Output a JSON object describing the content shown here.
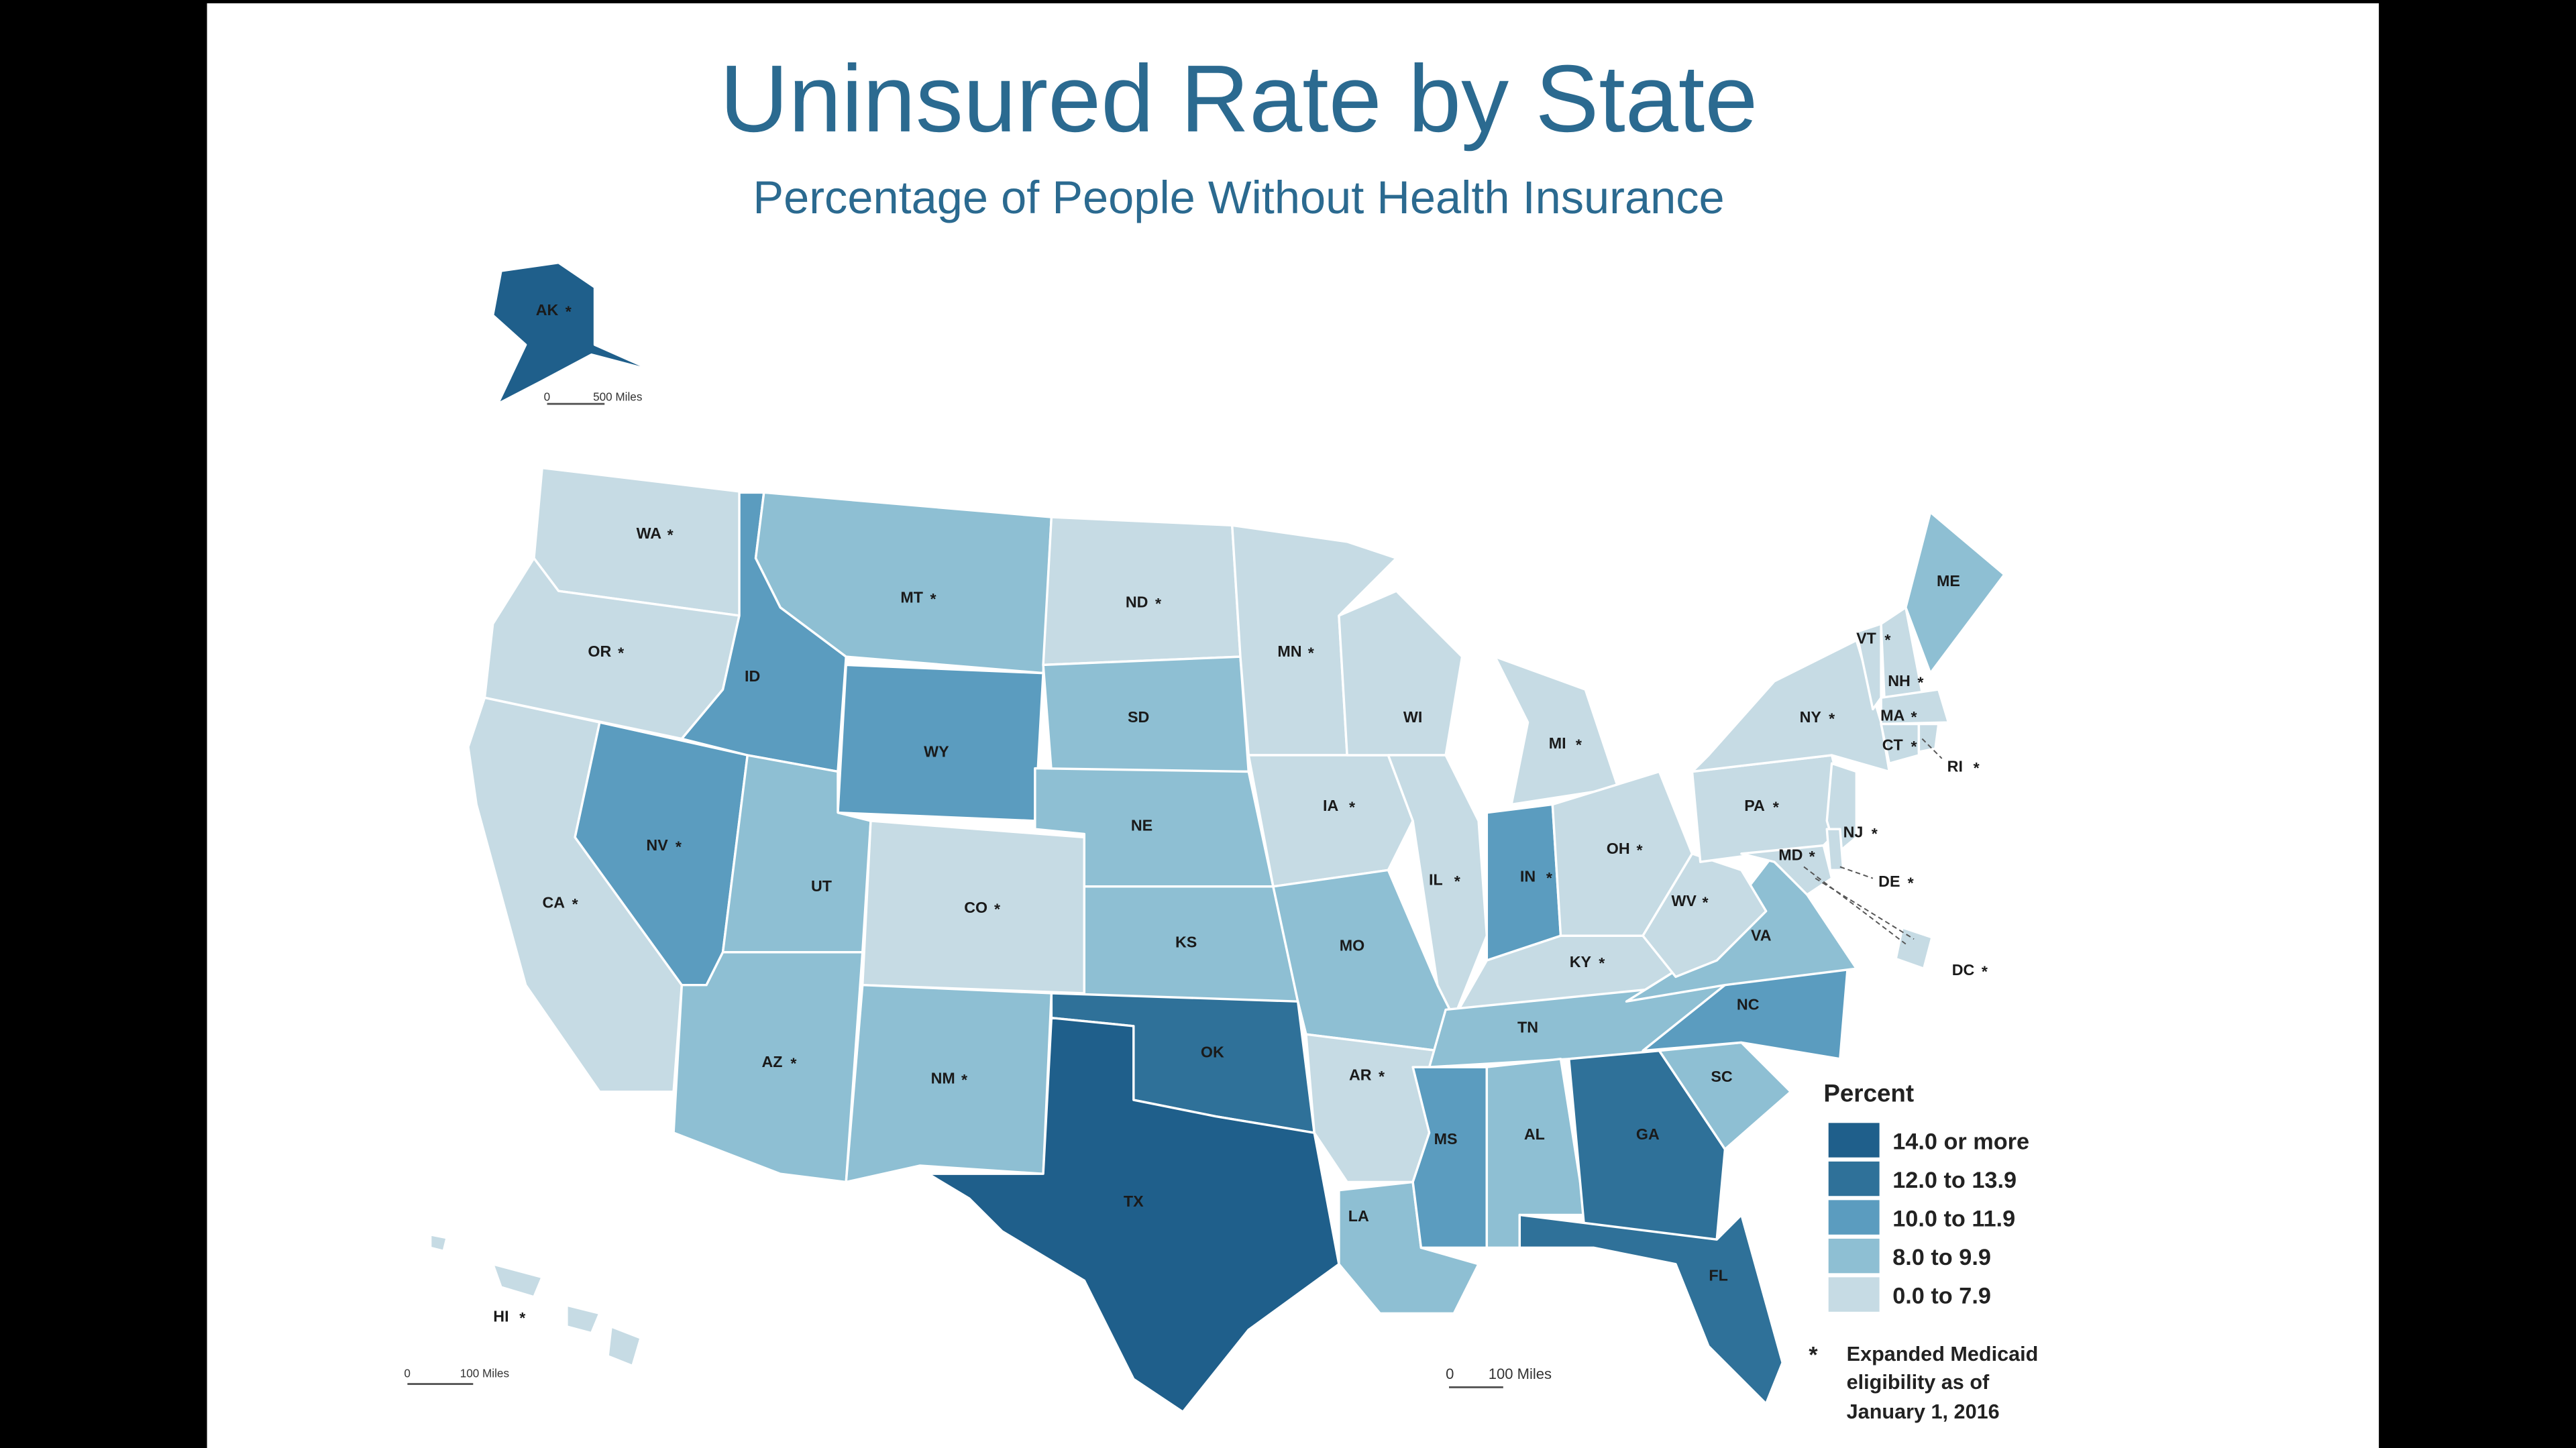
{
  "title": "Uninsured Rate by State",
  "subtitle": "Percentage of People Without Health Insurance",
  "legend": {
    "title": "Percent",
    "items": [
      {
        "label": "14.0 or more",
        "color": "#1f5f8b"
      },
      {
        "label": "12.0 to 13.9",
        "color": "#2f7199"
      },
      {
        "label": "10.0 to 11.9",
        "color": "#5b9cbf"
      },
      {
        "label": "8.0 to 9.9",
        "color": "#8ebfd3"
      },
      {
        "label": "0.0 to 7.9",
        "color": "#c6dbe4"
      }
    ],
    "note_symbol": "*",
    "note_lines": [
      "Expanded Medicaid",
      "eligibility as of",
      "January 1, 2016"
    ]
  },
  "scale_bars": {
    "alaska": {
      "zero": "0",
      "label": "500 Miles"
    },
    "hawaii": {
      "zero": "0",
      "label": "100 Miles"
    },
    "main": {
      "zero": "0",
      "label": "100 Miles"
    }
  },
  "colors": {
    "title": "#2b6a90",
    "background": "#ffffff",
    "frame": "#000000"
  },
  "states": [
    {
      "abbr": "AK",
      "cat": 0,
      "medicaid": true
    },
    {
      "abbr": "WA",
      "cat": 4,
      "medicaid": true
    },
    {
      "abbr": "OR",
      "cat": 4,
      "medicaid": true
    },
    {
      "abbr": "CA",
      "cat": 4,
      "medicaid": true
    },
    {
      "abbr": "NV",
      "cat": 2,
      "medicaid": true
    },
    {
      "abbr": "ID",
      "cat": 2,
      "medicaid": false
    },
    {
      "abbr": "MT",
      "cat": 3,
      "medicaid": true
    },
    {
      "abbr": "WY",
      "cat": 2,
      "medicaid": false
    },
    {
      "abbr": "UT",
      "cat": 3,
      "medicaid": false
    },
    {
      "abbr": "CO",
      "cat": 4,
      "medicaid": true
    },
    {
      "abbr": "AZ",
      "cat": 3,
      "medicaid": true
    },
    {
      "abbr": "NM",
      "cat": 3,
      "medicaid": true
    },
    {
      "abbr": "ND",
      "cat": 4,
      "medicaid": true
    },
    {
      "abbr": "SD",
      "cat": 3,
      "medicaid": false
    },
    {
      "abbr": "NE",
      "cat": 3,
      "medicaid": false
    },
    {
      "abbr": "KS",
      "cat": 3,
      "medicaid": false
    },
    {
      "abbr": "OK",
      "cat": 1,
      "medicaid": false
    },
    {
      "abbr": "TX",
      "cat": 0,
      "medicaid": false
    },
    {
      "abbr": "MN",
      "cat": 4,
      "medicaid": true
    },
    {
      "abbr": "IA",
      "cat": 4,
      "medicaid": true
    },
    {
      "abbr": "MO",
      "cat": 3,
      "medicaid": false
    },
    {
      "abbr": "AR",
      "cat": 4,
      "medicaid": true
    },
    {
      "abbr": "LA",
      "cat": 3,
      "medicaid": false
    },
    {
      "abbr": "WI",
      "cat": 4,
      "medicaid": false
    },
    {
      "abbr": "IL",
      "cat": 4,
      "medicaid": true
    },
    {
      "abbr": "MI",
      "cat": 4,
      "medicaid": true
    },
    {
      "abbr": "IN",
      "cat": 2,
      "medicaid": true
    },
    {
      "abbr": "OH",
      "cat": 4,
      "medicaid": true
    },
    {
      "abbr": "KY",
      "cat": 4,
      "medicaid": true
    },
    {
      "abbr": "TN",
      "cat": 3,
      "medicaid": false
    },
    {
      "abbr": "MS",
      "cat": 2,
      "medicaid": false
    },
    {
      "abbr": "AL",
      "cat": 3,
      "medicaid": false
    },
    {
      "abbr": "GA",
      "cat": 1,
      "medicaid": false
    },
    {
      "abbr": "FL",
      "cat": 1,
      "medicaid": false
    },
    {
      "abbr": "SC",
      "cat": 3,
      "medicaid": false
    },
    {
      "abbr": "NC",
      "cat": 2,
      "medicaid": false
    },
    {
      "abbr": "VA",
      "cat": 3,
      "medicaid": false
    },
    {
      "abbr": "WV",
      "cat": 4,
      "medicaid": true
    },
    {
      "abbr": "PA",
      "cat": 4,
      "medicaid": true
    },
    {
      "abbr": "NY",
      "cat": 4,
      "medicaid": true
    },
    {
      "abbr": "VT",
      "cat": 4,
      "medicaid": true
    },
    {
      "abbr": "NH",
      "cat": 4,
      "medicaid": true
    },
    {
      "abbr": "ME",
      "cat": 3,
      "medicaid": false
    },
    {
      "abbr": "MA",
      "cat": 4,
      "medicaid": true
    },
    {
      "abbr": "CT",
      "cat": 4,
      "medicaid": true
    },
    {
      "abbr": "RI",
      "cat": 4,
      "medicaid": true
    },
    {
      "abbr": "NJ",
      "cat": 4,
      "medicaid": true
    },
    {
      "abbr": "DE",
      "cat": 4,
      "medicaid": true
    },
    {
      "abbr": "MD",
      "cat": 4,
      "medicaid": true
    },
    {
      "abbr": "DC",
      "cat": 4,
      "medicaid": true
    },
    {
      "abbr": "HI",
      "cat": 4,
      "medicaid": true
    }
  ]
}
